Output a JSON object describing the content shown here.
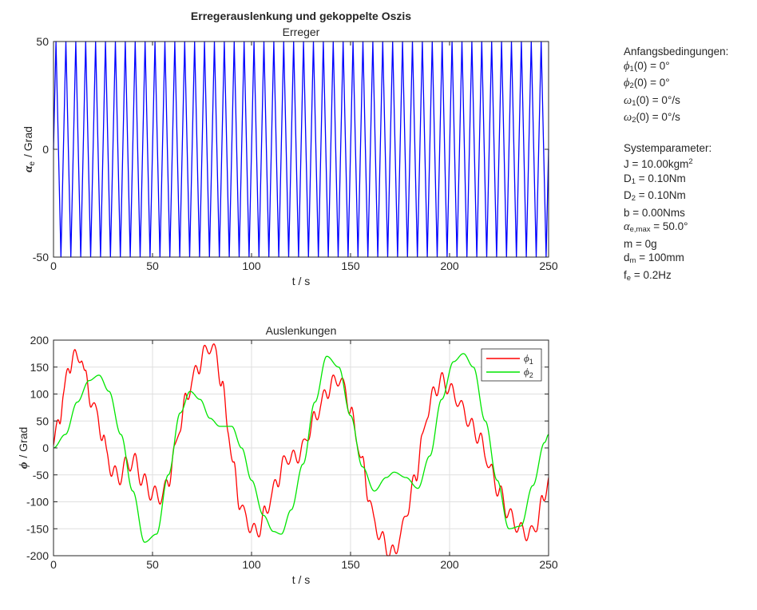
{
  "suptitle": "Erregerauslenkung und gekoppelte Oszis",
  "colors": {
    "phi1": "#ff0000",
    "phi2": "#00e600",
    "erreger": "#0000ff",
    "grid": "#dfdfdf",
    "axis": "#262626"
  },
  "chart_data": [
    {
      "type": "line",
      "title": "Erreger",
      "xlabel": "t / s",
      "ylabel_symbol": "α",
      "ylabel_sub": "e",
      "ylabel_unit": "/  Grad",
      "xlim": [
        0,
        250
      ],
      "ylim": [
        -50,
        50
      ],
      "xticks": [
        0,
        50,
        100,
        150,
        200,
        250
      ],
      "yticks": [
        -50,
        0,
        50
      ],
      "grid": false,
      "series": [
        {
          "id": "erreger",
          "color": "#0000ff",
          "form": "triangle",
          "amplitude": 50,
          "frequency_hz": 0.2,
          "x_range": [
            0,
            250
          ]
        }
      ]
    },
    {
      "type": "line",
      "title": "Auslenkungen",
      "xlabel": "t / s",
      "ylabel_symbol": "ϕ",
      "ylabel_unit": "/  Grad",
      "xlim": [
        0,
        250
      ],
      "ylim": [
        -200,
        200
      ],
      "xticks": [
        0,
        50,
        100,
        150,
        200,
        250
      ],
      "yticks": [
        -200,
        -150,
        -100,
        -50,
        0,
        50,
        100,
        150,
        200
      ],
      "grid": true,
      "legend": "top-right",
      "legend_entries": [
        {
          "symbol": "ϕ",
          "sub": "1",
          "color": "#ff0000"
        },
        {
          "symbol": "ϕ",
          "sub": "2",
          "color": "#00e600"
        }
      ],
      "series": [
        {
          "id": "phi1",
          "color": "#ff0000",
          "x": [
            0,
            3,
            5,
            8,
            10,
            12,
            14,
            16,
            19,
            22,
            25,
            27,
            30,
            33,
            37,
            41,
            45,
            50,
            55,
            58,
            61,
            64,
            67,
            70,
            73,
            76,
            79,
            82,
            85,
            88,
            91,
            94,
            97,
            101,
            104,
            107,
            110,
            113,
            116,
            119,
            122,
            126,
            129,
            132,
            135,
            138,
            141,
            144,
            147,
            150,
            153,
            156,
            159,
            162,
            166,
            170,
            172,
            175,
            179,
            183,
            186,
            189,
            193,
            196,
            199,
            203,
            207,
            211,
            215,
            218,
            221,
            225,
            229,
            233,
            237,
            241,
            244,
            247,
            250
          ],
          "y": [
            5,
            55,
            100,
            150,
            175,
            160,
            175,
            130,
            90,
            60,
            20,
            -15,
            -45,
            -55,
            -30,
            -25,
            -60,
            -85,
            -90,
            -60,
            -10,
            45,
            90,
            125,
            150,
            175,
            190,
            175,
            120,
            40,
            -40,
            -100,
            -130,
            -155,
            -150,
            -120,
            -90,
            -60,
            -30,
            -15,
            -20,
            0,
            30,
            55,
            80,
            105,
            120,
            130,
            110,
            70,
            20,
            -30,
            -85,
            -140,
            -170,
            -195,
            -195,
            -165,
            -110,
            -50,
            10,
            70,
            110,
            125,
            115,
            95,
            70,
            40,
            20,
            -10,
            -45,
            -80,
            -115,
            -140,
            -155,
            -160,
            -140,
            -100,
            -55
          ],
          "ripple_amplitude": 15,
          "ripple_period_s": 5
        },
        {
          "id": "phi2",
          "color": "#00e600",
          "x": [
            0,
            6,
            12,
            18,
            23,
            28,
            34,
            40,
            46,
            52,
            58,
            64,
            69,
            74,
            79,
            84,
            90,
            95,
            100,
            106,
            111,
            115,
            120,
            126,
            132,
            138,
            144,
            150,
            156,
            162,
            168,
            172,
            178,
            184,
            190,
            196,
            202,
            207,
            212,
            218,
            224,
            230,
            236,
            242,
            248,
            250
          ],
          "y": [
            0,
            25,
            85,
            125,
            135,
            105,
            25,
            -80,
            -175,
            -160,
            -50,
            65,
            105,
            90,
            55,
            40,
            40,
            0,
            -60,
            -125,
            -155,
            -160,
            -115,
            -30,
            85,
            170,
            150,
            60,
            -35,
            -80,
            -55,
            -45,
            -55,
            -75,
            -15,
            90,
            160,
            175,
            150,
            50,
            -60,
            -150,
            -145,
            -70,
            10,
            25
          ]
        }
      ]
    }
  ],
  "info": {
    "heading1": "Anfangsbedingungen:",
    "ic": [
      {
        "sym": "ϕ",
        "sub": "1",
        "rest": "(0)  =  0°"
      },
      {
        "sym": "ϕ",
        "sub": "2",
        "rest": "(0)  =  0°"
      },
      {
        "sym": "ω",
        "sub": "1",
        "rest": "(0)  =  0°/s"
      },
      {
        "sym": "ω",
        "sub": "2",
        "rest": "(0)  =  0°/s"
      }
    ],
    "heading2": "Systemparameter:",
    "J_pre": "J =  10.00kgm",
    "J_sup": "2",
    "D1_pre": "D",
    "D1_sub": "1",
    "D1_rest": " =  0.10Nm",
    "D2_pre": "D",
    "D2_sub": "2",
    "D2_rest": " =  0.10Nm",
    "b": "b =  0.00Nms",
    "alpha_sym": "α",
    "alpha_sub": "e,max",
    "alpha_rest": " =  50.0°",
    "m": "m =  0g",
    "dm_pre": "d",
    "dm_sub": "m",
    "dm_rest": " =  100mm",
    "fe_pre": "f",
    "fe_sub": "e",
    "fe_rest": " =  0.2Hz"
  }
}
